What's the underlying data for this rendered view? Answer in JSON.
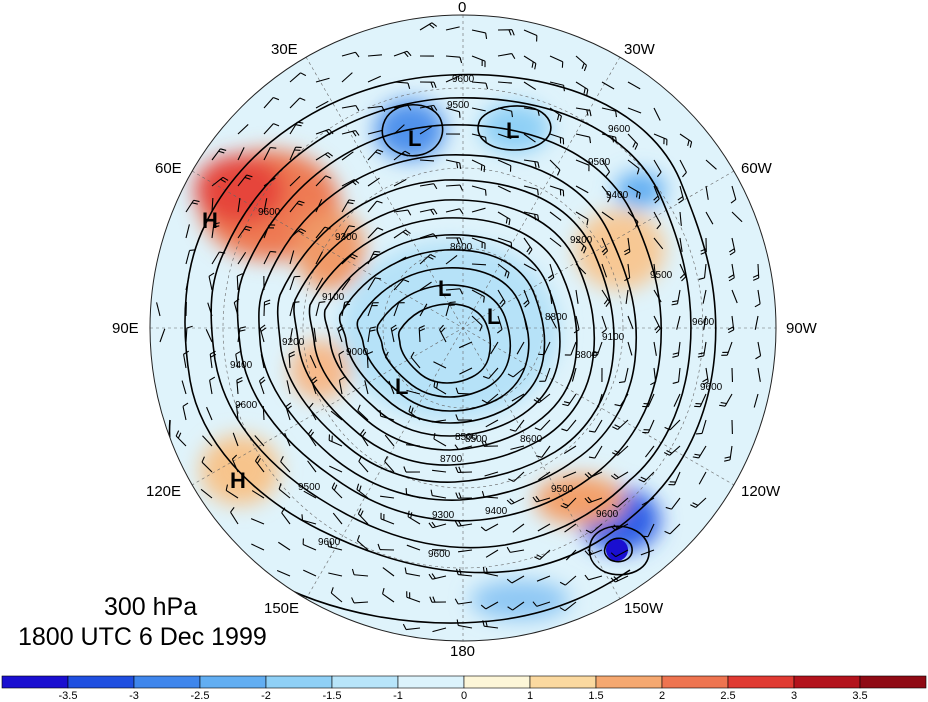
{
  "title": {
    "level": "300 hPa",
    "time": "1800 UTC 6 Dec 1999"
  },
  "longitude_labels": {
    "lon_0": "0",
    "lon_30w": "30W",
    "lon_60w": "60W",
    "lon_90w": "90W",
    "lon_120w": "120W",
    "lon_150w": "150W",
    "lon_180": "180",
    "lon_150e": "150E",
    "lon_120e": "120E",
    "lon_90e": "90E",
    "lon_60e": "60E",
    "lon_30e": "30E"
  },
  "contour_labels": [
    "9600",
    "9500",
    "9400",
    "9300",
    "9200",
    "9100",
    "9000",
    "8900",
    "8800",
    "8700",
    "8600",
    "8500"
  ],
  "pressure_centers": {
    "high": "H",
    "low": "L"
  },
  "colorbar": {
    "labels": [
      "-3.5",
      "-3",
      "-2.5",
      "-2",
      "-1.5",
      "-1",
      "0",
      "1",
      "1.5",
      "2",
      "2.5",
      "3",
      "3.5"
    ],
    "colors": [
      "#1a0fd0",
      "#1f4fe0",
      "#3f86ec",
      "#62aef2",
      "#8fd0f6",
      "#b8e5fa",
      "#dcf3fc",
      "#fdf6d8",
      "#fbd9a0",
      "#f5a870",
      "#ee7450",
      "#e03a32",
      "#b3131c",
      "#8f0a14"
    ]
  },
  "colors": {
    "contour": "#000000",
    "grid": "#555555",
    "coast": "#333333",
    "background": "#ffffff"
  }
}
